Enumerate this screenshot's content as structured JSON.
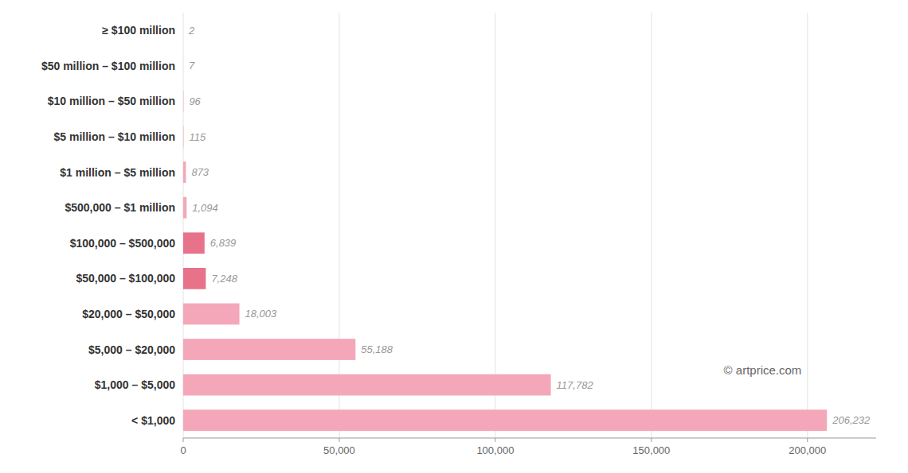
{
  "chart_data": {
    "type": "bar",
    "orientation": "horizontal",
    "categories": [
      "≥ $100 million",
      "$50 million – $100 million",
      "$10 million – $50 million",
      "$5 million – $10 million",
      "$1 million – $5 million",
      "$500,000 – $1 million",
      "$100,000 – $500,000",
      "$50,000 – $100,000",
      "$20,000 – $50,000",
      "$5,000 – $20,000",
      "$1,000 – $5,000",
      "< $1,000"
    ],
    "values": [
      2,
      7,
      96,
      115,
      873,
      1094,
      6839,
      7248,
      18003,
      55188,
      117782,
      206232
    ],
    "value_labels": [
      "2",
      "7",
      "96",
      "115",
      "873",
      "1,094",
      "6,839",
      "7,248",
      "18,003",
      "55,188",
      "117,782",
      "206,232"
    ],
    "data_labels": true,
    "colors": [
      "#f4a7b9",
      "#f4a7b9",
      "#f4a7b9",
      "#f4a7b9",
      "#f4a7b9",
      "#f4a7b9",
      "#e8728a",
      "#e8728a",
      "#f4a7b9",
      "#f4a7b9",
      "#f4a7b9",
      "#f4a7b9"
    ],
    "xlim": [
      0,
      222000
    ],
    "xticks": [
      0,
      {
        "value": 50000,
        "label": "50,000"
      },
      {
        "value": 100000,
        "label": "100,000"
      },
      {
        "value": 150000,
        "label": "150,000"
      },
      {
        "value": 200000,
        "label": "200,000"
      }
    ],
    "grid": true,
    "annotations": [
      "© artprice.com"
    ]
  }
}
